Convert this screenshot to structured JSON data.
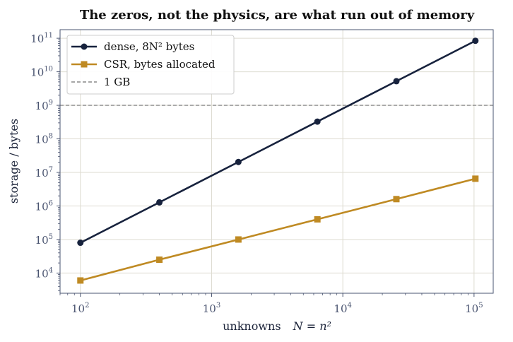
{
  "chart_data": {
    "type": "line",
    "title": "The zeros, not the physics, are what run out of memory",
    "xlabel_text": "unknowns",
    "xlabel_math": "N = n²",
    "ylabel": "storage / bytes",
    "x_scale": "log",
    "y_scale": "log",
    "xlim": [
      70,
      140000
    ],
    "ylim": [
      2500,
      180000000000
    ],
    "x_ticks": [
      {
        "base": "10",
        "exp": "2",
        "value": 100
      },
      {
        "base": "10",
        "exp": "3",
        "value": 1000
      },
      {
        "base": "10",
        "exp": "4",
        "value": 10000
      },
      {
        "base": "10",
        "exp": "5",
        "value": 100000
      }
    ],
    "y_ticks": [
      {
        "base": "10",
        "exp": "4",
        "value": 10000
      },
      {
        "base": "10",
        "exp": "5",
        "value": 100000
      },
      {
        "base": "10",
        "exp": "6",
        "value": 1000000
      },
      {
        "base": "10",
        "exp": "7",
        "value": 10000000
      },
      {
        "base": "10",
        "exp": "8",
        "value": 100000000
      },
      {
        "base": "10",
        "exp": "9",
        "value": 1000000000
      },
      {
        "base": "10",
        "exp": "10",
        "value": 10000000000
      },
      {
        "base": "10",
        "exp": "11",
        "value": 100000000000
      }
    ],
    "grid": true,
    "legend_position": "top-left",
    "series": [
      {
        "name": "dense, 8N² bytes",
        "color": "#17223d",
        "marker": "circle",
        "x": [
          100,
          400,
          1600,
          6400,
          25600,
          102400
        ],
        "y": [
          80000,
          1280000,
          20480000,
          327680000,
          5242880000,
          83886080000
        ]
      },
      {
        "name": "CSR, bytes allocated",
        "color": "#bf8a23",
        "marker": "square",
        "x": [
          100,
          400,
          1600,
          6400,
          25600,
          102400
        ],
        "y": [
          6000,
          25000,
          100000,
          400000,
          1600000,
          6500000
        ]
      }
    ],
    "reference_lines": [
      {
        "name": "1 GB",
        "y": 1000000000,
        "color": "#8a8a8a",
        "style": "dashed"
      }
    ]
  }
}
